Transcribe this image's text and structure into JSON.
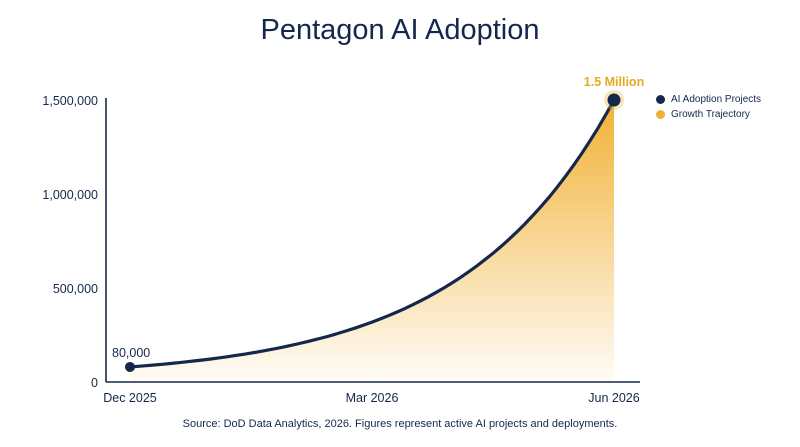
{
  "colors": {
    "line": "#14284b",
    "fill": "#f2b134",
    "highlight": "#e8a820",
    "text": "#14284b"
  },
  "chart_data": {
    "type": "area",
    "title": "Pentagon AI Adoption",
    "source": "Source: DoD Data Analytics, 2026. Figures represent active AI projects and deployments.",
    "xlabel": "",
    "ylabel": "",
    "x_ticks": [
      "Dec 2025",
      "Mar 2026",
      "Jun 2026"
    ],
    "x_range": [
      "2025-12",
      "2026-06"
    ],
    "y_ticks": [
      "0",
      "500,000",
      "1,000,000",
      "1,500,000"
    ],
    "ylim": [
      0,
      1500000
    ],
    "grid": false,
    "legend_position": "right",
    "legend": [
      {
        "label": "AI Adoption Projects",
        "color": "#14284b"
      },
      {
        "label": "Growth Trajectory",
        "color": "#f2b134"
      }
    ],
    "series": [
      {
        "name": "AI Adoption Projects",
        "points": [
          {
            "x": "Dec 2025",
            "y": 80000
          },
          {
            "x": "Jun 2026",
            "y": 1500000
          }
        ]
      }
    ],
    "annotations": [
      {
        "text": "80,000",
        "at": "Dec 2025"
      },
      {
        "text": "1.5 Million",
        "at": "Jun 2026"
      }
    ]
  }
}
